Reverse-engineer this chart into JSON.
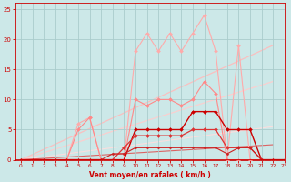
{
  "bg_color": "#cce8e8",
  "grid_color": "#aacccc",
  "xlabel": "Vent moyen/en rafales ( km/h )",
  "xlabel_color": "#cc0000",
  "tick_color": "#cc0000",
  "xlim": [
    -0.5,
    23
  ],
  "ylim": [
    0,
    26
  ],
  "xticks": [
    0,
    1,
    2,
    3,
    4,
    5,
    6,
    7,
    8,
    9,
    10,
    11,
    12,
    13,
    14,
    15,
    16,
    17,
    18,
    19,
    20,
    21,
    22,
    23
  ],
  "yticks": [
    0,
    5,
    10,
    15,
    20,
    25
  ],
  "series": [
    {
      "x": [
        0,
        1,
        2,
        3,
        4,
        5,
        6,
        7,
        8,
        9,
        10,
        11,
        12,
        13,
        14,
        15,
        16,
        17,
        18,
        19,
        20,
        21,
        22,
        23
      ],
      "y": [
        0,
        0,
        0,
        0,
        0,
        6,
        7,
        0,
        0,
        0,
        18,
        21,
        18,
        21,
        18,
        21,
        24,
        18,
        0,
        19,
        0,
        0,
        0,
        0
      ],
      "color": "#ffaaaa",
      "marker": "D",
      "markersize": 2.0,
      "linewidth": 0.8,
      "alpha": 1.0,
      "zorder": 2
    },
    {
      "x": [
        0,
        1,
        2,
        3,
        4,
        5,
        6,
        7,
        8,
        9,
        10,
        11,
        12,
        13,
        14,
        15,
        16,
        17,
        18,
        19,
        20,
        21,
        22,
        23
      ],
      "y": [
        0,
        0,
        0,
        0,
        0,
        5,
        7,
        0,
        0,
        0,
        10,
        9,
        10,
        10,
        9,
        10,
        13,
        11,
        0,
        0,
        0,
        0,
        0,
        0
      ],
      "color": "#ff8888",
      "marker": "D",
      "markersize": 2.0,
      "linewidth": 0.8,
      "alpha": 1.0,
      "zorder": 3
    },
    {
      "x": [
        0,
        1,
        2,
        3,
        4,
        5,
        6,
        7,
        8,
        9,
        10,
        11,
        12,
        13,
        14,
        15,
        16,
        17,
        18,
        19,
        20,
        21,
        22,
        23
      ],
      "y": [
        0,
        0,
        0,
        0,
        0,
        0,
        0,
        0,
        0,
        0,
        5,
        5,
        5,
        5,
        5,
        8,
        8,
        8,
        5,
        5,
        5,
        0,
        0,
        0
      ],
      "color": "#cc0000",
      "marker": "D",
      "markersize": 2.0,
      "linewidth": 1.0,
      "alpha": 1.0,
      "zorder": 4
    },
    {
      "x": [
        0,
        1,
        2,
        3,
        4,
        5,
        6,
        7,
        8,
        9,
        10,
        11,
        12,
        13,
        14,
        15,
        16,
        17,
        18,
        19,
        20,
        21,
        22,
        23
      ],
      "y": [
        0,
        0,
        0,
        0,
        0,
        0,
        0,
        0,
        0,
        2,
        4,
        4,
        4,
        4,
        4,
        5,
        5,
        5,
        2,
        2,
        2,
        0,
        0,
        0
      ],
      "color": "#dd3333",
      "marker": "D",
      "markersize": 2.0,
      "linewidth": 0.9,
      "alpha": 1.0,
      "zorder": 4
    },
    {
      "x": [
        0,
        1,
        2,
        3,
        4,
        5,
        6,
        7,
        8,
        9,
        10,
        11,
        12,
        13,
        14,
        15,
        16,
        17,
        18,
        19,
        20,
        21,
        22,
        23
      ],
      "y": [
        0,
        0,
        0,
        0,
        0,
        0,
        0,
        0,
        1,
        1,
        2,
        2,
        2,
        2,
        2,
        2,
        2,
        2,
        1,
        2,
        2,
        0,
        0,
        0
      ],
      "color": "#cc2222",
      "marker": "D",
      "markersize": 1.5,
      "linewidth": 0.8,
      "alpha": 1.0,
      "zorder": 4
    },
    {
      "x": [
        0,
        22
      ],
      "y": [
        0,
        19
      ],
      "color": "#ffbbbb",
      "marker": null,
      "linewidth": 0.9,
      "alpha": 0.9,
      "zorder": 1
    },
    {
      "x": [
        0,
        22
      ],
      "y": [
        0,
        13
      ],
      "color": "#ffcccc",
      "marker": null,
      "linewidth": 0.9,
      "alpha": 0.9,
      "zorder": 1
    },
    {
      "x": [
        0,
        22
      ],
      "y": [
        0,
        5.5
      ],
      "color": "#ffdddd",
      "marker": null,
      "linewidth": 0.8,
      "alpha": 0.9,
      "zorder": 1
    },
    {
      "x": [
        0,
        22
      ],
      "y": [
        0,
        2.5
      ],
      "color": "#dd5555",
      "marker": null,
      "linewidth": 0.8,
      "alpha": 0.9,
      "zorder": 1
    }
  ]
}
